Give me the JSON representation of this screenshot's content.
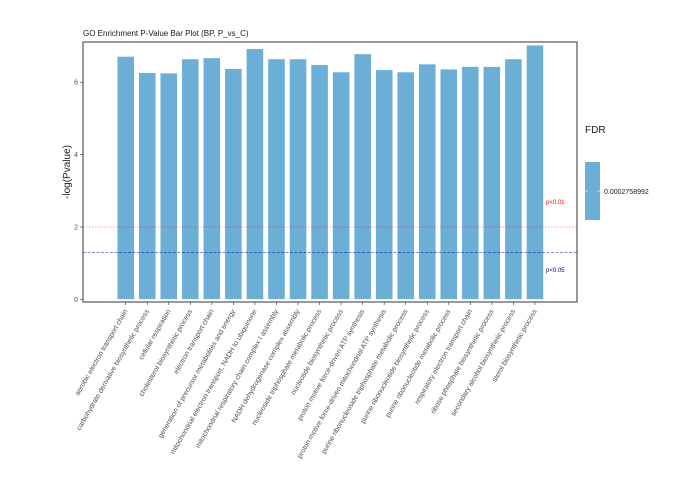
{
  "chart_data": {
    "type": "bar",
    "title": "GO Enrichment P-Value Bar Plot (BP, P_vs_C)",
    "xlabel": "",
    "ylabel": "-log(Pvalue)",
    "ylim": [
      0,
      7.1
    ],
    "yticks": [
      0,
      2,
      4,
      6
    ],
    "ytick_labels": [
      "0",
      "2",
      "4",
      "6"
    ],
    "grid": false,
    "categories": [
      "aerobic electron transport chain",
      "carbohydrate derivative biosynthetic process",
      "cellular respiration",
      "cholesterol biosynthetic process",
      "electron transport chain",
      "generation of precursor metabolites and energy",
      "mitochondrial electron transport, NADH to ubiquinone",
      "mitochondrial respiratory chain complex I assembly",
      "NADH dehydrogenase complex assembly",
      "nucleoside triphosphate metabolic process",
      "nucleotide biosynthetic process",
      "proton motive force-driven ATP synthesis",
      "proton motive force-driven mitochondrial ATP synthesis",
      "purine ribonucleoside triphosphate metabolic process",
      "purine ribonucleotide biosynthetic process",
      "purine ribonucleotide metabolic process",
      "respiratory electron transport chain",
      "ribose phosphate biosynthetic process",
      "secondary alcohol biosynthetic process",
      "sterol biosynthetic process"
    ],
    "values": [
      6.71,
      6.26,
      6.25,
      6.64,
      6.67,
      6.37,
      6.92,
      6.64,
      6.64,
      6.48,
      6.28,
      6.78,
      6.34,
      6.28,
      6.5,
      6.36,
      6.43,
      6.43,
      6.64,
      7.02
    ],
    "bar_color": "#6baed6",
    "reference_lines": [
      {
        "label": "p<0.01",
        "y": 2,
        "color": "#ff0000",
        "style": "dotted"
      },
      {
        "label": "p<0.05",
        "y": 1.301,
        "color": "#00008b",
        "style": "dashed"
      }
    ],
    "legend": {
      "title": "FDR",
      "label": "0.0002758992",
      "color": "#6baed6",
      "placement": "right"
    }
  }
}
